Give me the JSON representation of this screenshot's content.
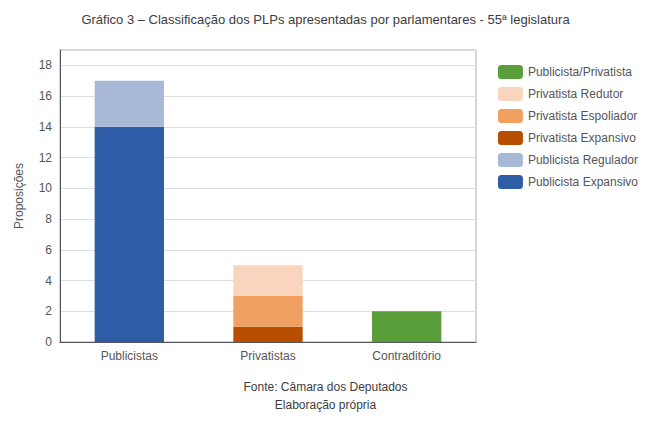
{
  "chart_data": {
    "type": "bar",
    "stacked": true,
    "grid": true,
    "legend": "right",
    "title": "Gráfico 3 – Classificação dos PLPs apresentadas por parlamentares - 55ª legislatura",
    "ylabel": "Proposições",
    "annotations": [
      "Fonte: Câmara dos Deputados",
      "Elaboração própria"
    ],
    "categories": [
      "Publicistas",
      "Privatistas",
      "Contraditório"
    ],
    "series": [
      {
        "name": "Publicista Expansivo",
        "color": "#2E5CA6",
        "values": [
          14,
          0,
          0
        ]
      },
      {
        "name": "Publicista Regulador",
        "color": "#A8B9D8",
        "values": [
          3,
          0,
          0
        ]
      },
      {
        "name": "Privatista Expansivo",
        "color": "#B84E00",
        "values": [
          0,
          1,
          0
        ]
      },
      {
        "name": "Privatista Espoliador",
        "color": "#F0A060",
        "values": [
          0,
          2,
          0
        ]
      },
      {
        "name": "Privatista Redutor",
        "color": "#F9D5C0",
        "values": [
          0,
          2,
          0
        ]
      },
      {
        "name": "Publicista/Privatista",
        "color": "#5A9E3A",
        "values": [
          0,
          0,
          2
        ]
      }
    ],
    "ylim": [
      0,
      19
    ],
    "yticks": [
      0,
      2,
      4,
      6,
      8,
      10,
      12,
      14,
      16,
      18
    ]
  }
}
